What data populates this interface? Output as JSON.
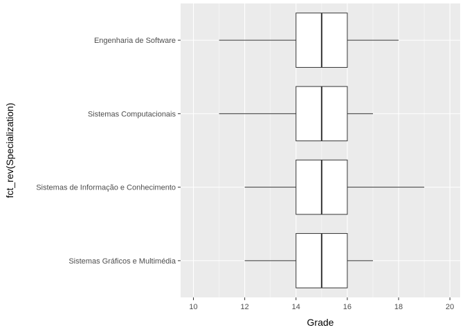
{
  "chart_data": {
    "type": "boxplot",
    "orientation": "horizontal",
    "xlabel": "Grade",
    "ylabel": "fct_rev(Specialization)",
    "xlim": [
      9.5,
      20.4
    ],
    "x_ticks": [
      10,
      12,
      14,
      16,
      18,
      20
    ],
    "grid": true,
    "categories": [
      "Engenharia de Software",
      "Sistemas Computacionais",
      "Sistemas de Informação e Conhecimento",
      "Sistemas Gráficos e Multimédia"
    ],
    "boxes": [
      {
        "category": "Engenharia de Software",
        "min": 11,
        "q1": 14,
        "median": 15,
        "q3": 16,
        "max": 18
      },
      {
        "category": "Sistemas Computacionais",
        "min": 11,
        "q1": 14,
        "median": 15,
        "q3": 16,
        "max": 17
      },
      {
        "category": "Sistemas de Informação e Conhecimento",
        "min": 12,
        "q1": 14,
        "median": 15,
        "q3": 16,
        "max": 19
      },
      {
        "category": "Sistemas Gráficos e Multimédia",
        "min": 12,
        "q1": 14,
        "median": 15,
        "q3": 16,
        "max": 17
      }
    ],
    "colors": {
      "panel_background": "#ebebeb",
      "grid_major": "#ffffff",
      "box_fill": "#ffffff",
      "box_stroke": "#333333",
      "tick_label": "#4d4d4d"
    }
  }
}
